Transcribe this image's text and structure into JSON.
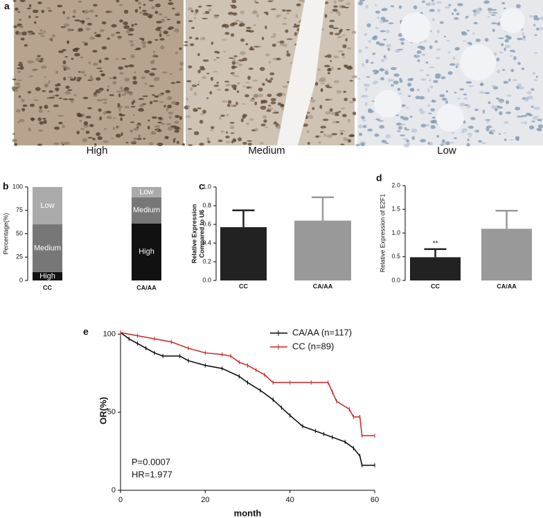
{
  "images": {
    "label": "a",
    "captions": [
      "High",
      "Medium",
      "Low"
    ]
  },
  "chart_data": [
    {
      "type": "stacked-bar",
      "label": "b",
      "ylabel": "Percentage(%)",
      "categories": [
        "CC",
        "CA/AA"
      ],
      "series": [
        {
          "name": "High",
          "color": "#111111",
          "values": [
            9,
            61
          ]
        },
        {
          "name": "Medium",
          "color": "#777777",
          "values": [
            51,
            28
          ]
        },
        {
          "name": "Low",
          "color": "#aaaaaa",
          "values": [
            40,
            11
          ]
        }
      ],
      "ylim": [
        0,
        100
      ],
      "yticks": [
        0,
        25,
        50,
        75,
        100
      ]
    },
    {
      "type": "bar",
      "label": "c",
      "ylabel": [
        "Relative Expression",
        "Compared to U6"
      ],
      "categories": [
        "CC",
        "CA/AA"
      ],
      "values": [
        0.57,
        0.64
      ],
      "errors": [
        0.18,
        0.25
      ],
      "colors": [
        "#222222",
        "#999999"
      ],
      "ylim": [
        0,
        1
      ],
      "yticks": [
        {
          "value": 0,
          "label": "0.0"
        },
        {
          "value": 0.2,
          "label": "0.2"
        },
        {
          "value": 0.4,
          "label": "0.4"
        },
        {
          "value": 0.6,
          "label": "0.6"
        },
        {
          "value": 0.8,
          "label": "0.8"
        },
        {
          "value": 1,
          "label": "1.0"
        }
      ]
    },
    {
      "type": "bar",
      "label": "d",
      "ylabel": [
        "Relative Expression of E2F1"
      ],
      "categories": [
        "CC",
        "CA/AA"
      ],
      "values": [
        0.49,
        1.09
      ],
      "errors": [
        0.17,
        0.38
      ],
      "colors": [
        "#222222",
        "#999999"
      ],
      "annotation": "**",
      "ylim": [
        0,
        2
      ],
      "yticks": [
        {
          "value": 0,
          "label": "0.0"
        },
        {
          "value": 0.5,
          "label": "0.5"
        },
        {
          "value": 1,
          "label": "1.0"
        },
        {
          "value": 1.5,
          "label": "1.5"
        },
        {
          "value": 2,
          "label": "2.0"
        }
      ]
    },
    {
      "type": "line",
      "label": "e",
      "ylabel": [
        "OR(%)"
      ],
      "xlabel": "month",
      "annotations": [
        "P=0.0007",
        "HR=1.977"
      ],
      "series": [
        {
          "name": "CA/AA (n=117)",
          "color": "#000000",
          "x": [
            0,
            2,
            4,
            6,
            8,
            10,
            14,
            16,
            20,
            24,
            28,
            30,
            33,
            36,
            38,
            40,
            43,
            46,
            48,
            50,
            53,
            55,
            56.5,
            57,
            60
          ],
          "values": [
            101,
            97,
            94,
            91,
            88,
            86,
            86,
            83,
            80,
            78,
            73,
            69,
            64,
            58,
            53,
            48,
            41,
            38,
            36,
            34,
            31,
            27,
            22,
            16,
            16
          ]
        },
        {
          "name": "CC (n=89)",
          "color": "#cc2020",
          "x": [
            0,
            4,
            8,
            12,
            16,
            20,
            24,
            26,
            28,
            30,
            32,
            34,
            36,
            40,
            45,
            49,
            50,
            51,
            54,
            55,
            56.5,
            57,
            60
          ],
          "values": [
            101,
            99,
            97,
            95,
            91,
            88,
            87,
            86,
            82,
            80,
            77,
            74,
            69,
            69,
            69,
            69,
            63,
            57,
            52,
            47,
            47,
            35,
            35
          ]
        }
      ],
      "xlim": [
        0,
        60
      ],
      "xticks": [
        0,
        20,
        40,
        60
      ],
      "ylim": [
        0,
        102
      ],
      "yticks": [
        0,
        50,
        100
      ]
    }
  ]
}
